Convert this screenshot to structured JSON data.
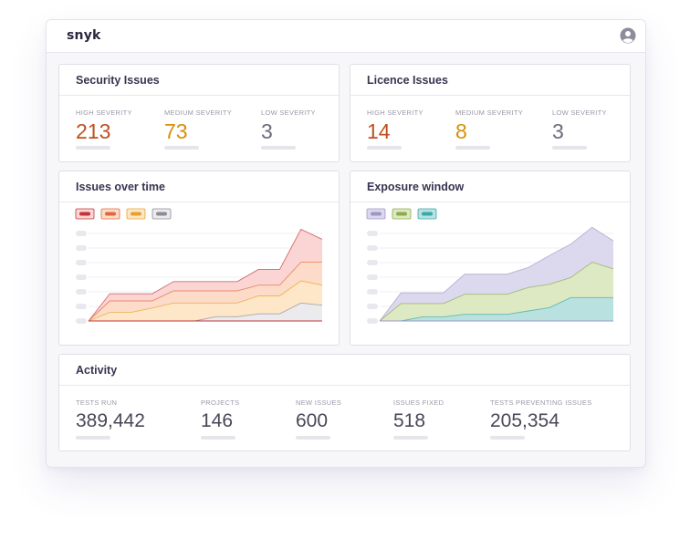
{
  "app": {
    "brand": "snyk",
    "user_icon": "user-avatar-icon"
  },
  "security_issues": {
    "title": "Security Issues",
    "stats": [
      {
        "label": "HIGH SEVERITY",
        "value": "213"
      },
      {
        "label": "MEDIUM  SEVERITY",
        "value": "73"
      },
      {
        "label": "LOW SEVERITY",
        "value": "3"
      }
    ]
  },
  "licence_issues": {
    "title": "Licence Issues",
    "stats": [
      {
        "label": "HIGH SEVERITY",
        "value": "14"
      },
      {
        "label": "MEDIUM  SEVERITY",
        "value": "8"
      },
      {
        "label": "LOW SEVERITY",
        "value": "3"
      }
    ]
  },
  "issues_over_time": {
    "title": "Issues over time"
  },
  "exposure_window": {
    "title": "Exposure window"
  },
  "activity": {
    "title": "Activity",
    "stats": [
      {
        "label": "TESTS RUN",
        "value": "389,442"
      },
      {
        "label": "PROJECTS",
        "value": "146"
      },
      {
        "label": "NEW ISSUES",
        "value": "600"
      },
      {
        "label": "ISSUES FIXED",
        "value": "518"
      },
      {
        "label": "TESTS PREVENTING ISSUES",
        "value": "205,354"
      }
    ]
  },
  "colors": {
    "high": "#c0501d",
    "medium": "#d98e07",
    "low": "#6d6a7c"
  },
  "chart_data": [
    {
      "type": "area",
      "title": "Issues over time",
      "x": [
        0,
        1,
        2,
        3,
        4,
        5,
        6,
        7,
        8,
        9,
        10,
        11
      ],
      "series": [
        {
          "color": "#c0343a",
          "fill": "#fbd5d3",
          "values": [
            0,
            38,
            38,
            38,
            55,
            55,
            55,
            55,
            72,
            72,
            128,
            114
          ]
        },
        {
          "color": "#e0683c",
          "fill": "#fcdcc8",
          "values": [
            0,
            28,
            28,
            28,
            42,
            42,
            42,
            42,
            50,
            50,
            82,
            82
          ]
        },
        {
          "color": "#e7a02c",
          "fill": "#fde7c8",
          "values": [
            0,
            12,
            12,
            18,
            25,
            25,
            25,
            25,
            35,
            35,
            56,
            50
          ]
        },
        {
          "color": "#8e8b96",
          "fill": "#ebebed",
          "values": [
            0,
            0,
            0,
            0,
            0,
            0,
            6,
            6,
            10,
            10,
            25,
            22
          ]
        }
      ],
      "ylim": [
        0,
        140
      ]
    },
    {
      "type": "area",
      "title": "Exposure window",
      "x": [
        0,
        1,
        2,
        3,
        4,
        5,
        6,
        7,
        8,
        9,
        10,
        11
      ],
      "series": [
        {
          "color": "#9c97c8",
          "fill": "#dcd9ee",
          "values": [
            0,
            42,
            42,
            42,
            70,
            70,
            70,
            80,
            98,
            115,
            140,
            120
          ]
        },
        {
          "color": "#8daa4e",
          "fill": "#dde9c3",
          "values": [
            0,
            26,
            26,
            26,
            40,
            40,
            40,
            50,
            55,
            65,
            88,
            78
          ]
        },
        {
          "color": "#3aa9a6",
          "fill": "#b9e1e0",
          "values": [
            0,
            0,
            6,
            6,
            10,
            10,
            10,
            15,
            20,
            35,
            35,
            35
          ]
        }
      ],
      "ylim": [
        0,
        150
      ]
    }
  ]
}
